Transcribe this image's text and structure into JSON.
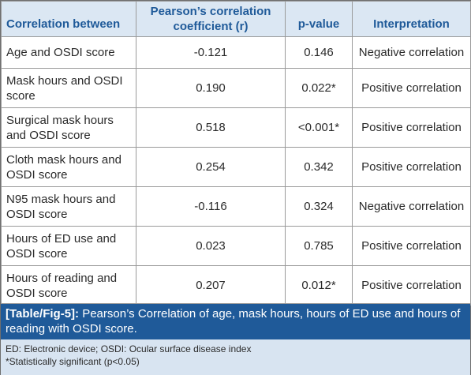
{
  "table": {
    "headers": {
      "correlation": "Correlation between",
      "coefficient": "Pearson’s correlation coefficient (r)",
      "pvalue": "p-value",
      "interpretation": "Interpretation"
    },
    "rows": [
      {
        "correlation": "Age and OSDI score",
        "r": "-0.121",
        "p": "0.146",
        "interpretation": "Negative correlation"
      },
      {
        "correlation": "Mask hours and OSDI score",
        "r": "0.190",
        "p": "0.022*",
        "interpretation": "Positive correlation"
      },
      {
        "correlation": "Surgical mask hours and OSDI score",
        "r": "0.518",
        "p": "<0.001*",
        "interpretation": "Positive correlation"
      },
      {
        "correlation": "Cloth mask hours and OSDI score",
        "r": "0.254",
        "p": "0.342",
        "interpretation": "Positive correlation"
      },
      {
        "correlation": "N95 mask hours and OSDI score",
        "r": "-0.116",
        "p": "0.324",
        "interpretation": "Negative correlation"
      },
      {
        "correlation": "Hours of ED use and OSDI score",
        "r": "0.023",
        "p": "0.785",
        "interpretation": "Positive correlation"
      },
      {
        "correlation": "Hours of reading and OSDI score",
        "r": "0.207",
        "p": "0.012*",
        "interpretation": "Positive correlation"
      }
    ]
  },
  "caption": {
    "label": "[Table/Fig-5]:",
    "text": " Pearson’s Correlation of age, mask hours, hours of ED use and hours of reading with OSDI score.",
    "abbreviations": "ED: Electronic device; OSDI: Ocular surface disease index",
    "footnote": "*Statistically significant (p<0.05)"
  }
}
